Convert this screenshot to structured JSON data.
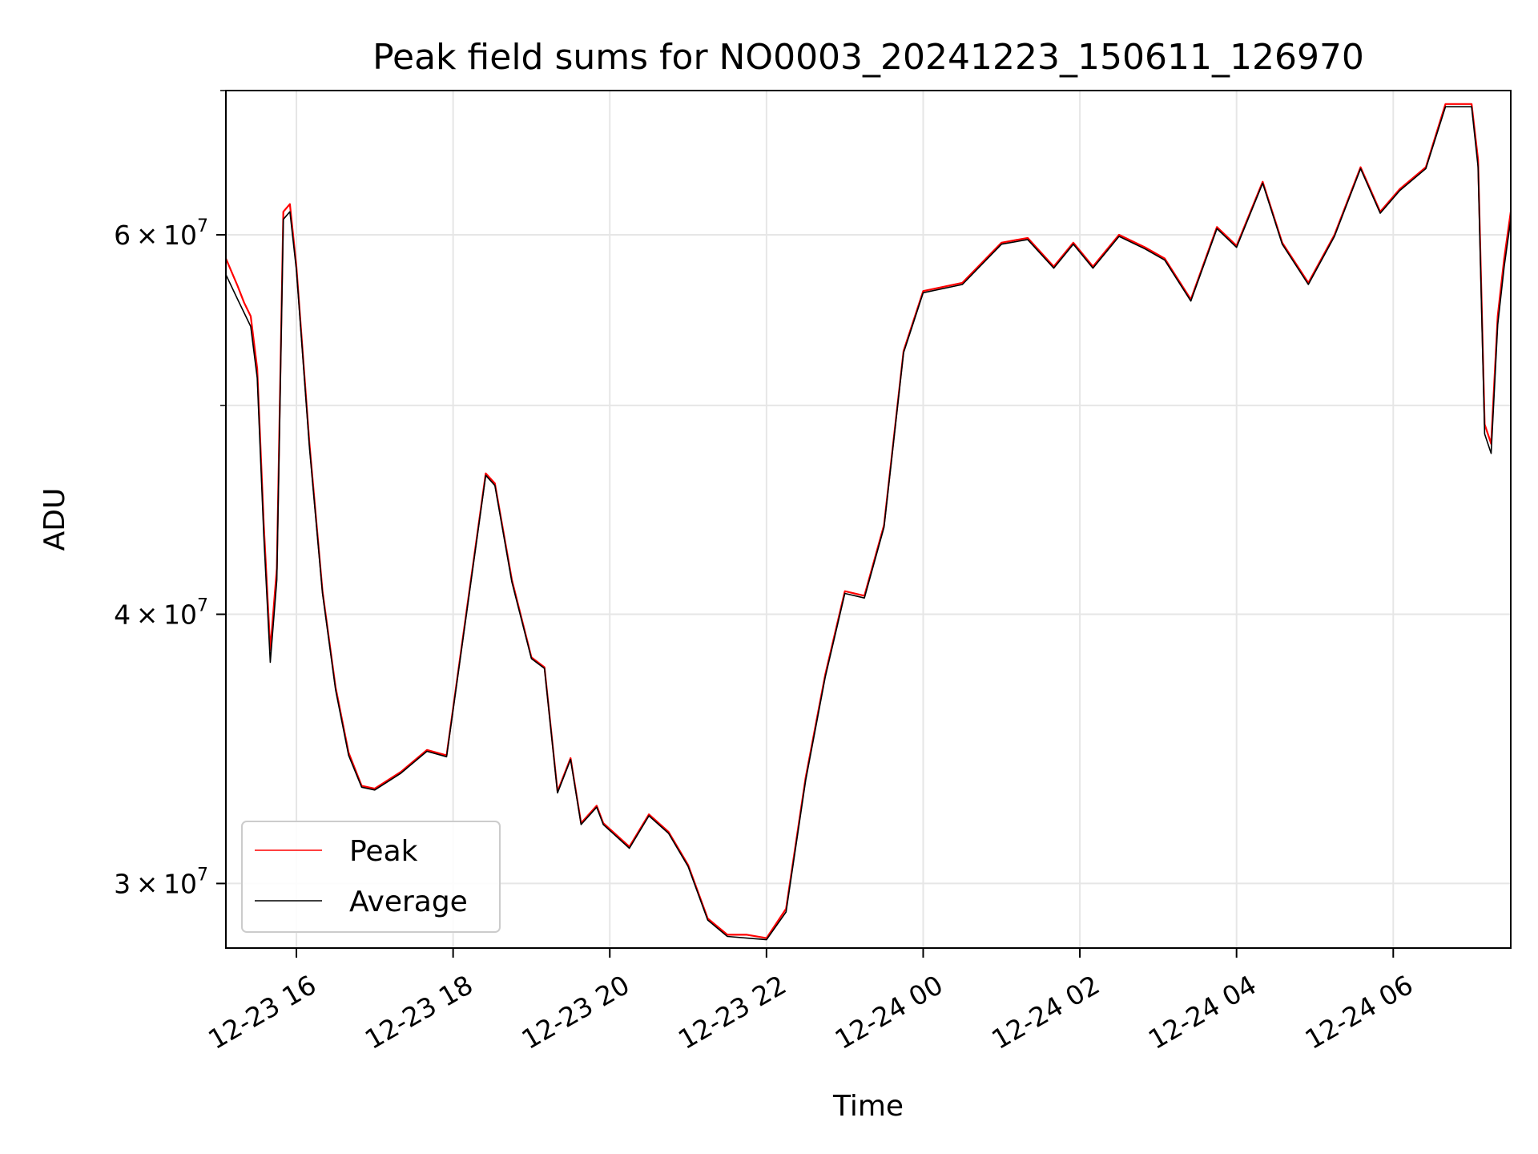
{
  "chart_data": {
    "type": "line",
    "title": "Peak field sums for NO0003_20241223_150611_126970",
    "xlabel": "Time",
    "ylabel": "ADU",
    "y_scale": "log",
    "grid": true,
    "legend_position": "lower-left",
    "x_range": [
      "2024-12-23 15:06",
      "2024-12-24 07:30"
    ],
    "ylim": [
      28000000,
      70000000
    ],
    "x_ticks": [
      {
        "value": "2024-12-23 16:00",
        "label": "12-23 16"
      },
      {
        "value": "2024-12-23 18:00",
        "label": "12-23 18"
      },
      {
        "value": "2024-12-23 20:00",
        "label": "12-23 20"
      },
      {
        "value": "2024-12-23 22:00",
        "label": "12-23 22"
      },
      {
        "value": "2024-12-24 00:00",
        "label": "12-24 00"
      },
      {
        "value": "2024-12-24 02:00",
        "label": "12-24 02"
      },
      {
        "value": "2024-12-24 04:00",
        "label": "12-24 04"
      },
      {
        "value": "2024-12-24 06:00",
        "label": "12-24 06"
      }
    ],
    "y_ticks_major": [
      {
        "value": 30000000,
        "mantissa": "3",
        "base": "10",
        "exp": "7"
      },
      {
        "value": 40000000,
        "mantissa": "4",
        "base": "10",
        "exp": "7"
      },
      {
        "value": 60000000,
        "mantissa": "6",
        "base": "10",
        "exp": "7"
      }
    ],
    "y_ticks_minor": [
      50000000
    ],
    "x": [
      "2024-12-23 15:06",
      "2024-12-23 15:15",
      "2024-12-23 15:20",
      "2024-12-23 15:25",
      "2024-12-23 15:30",
      "2024-12-23 15:35",
      "2024-12-23 15:40",
      "2024-12-23 15:45",
      "2024-12-23 15:50",
      "2024-12-23 15:55",
      "2024-12-23 16:00",
      "2024-12-23 16:10",
      "2024-12-23 16:20",
      "2024-12-23 16:30",
      "2024-12-23 16:40",
      "2024-12-23 16:50",
      "2024-12-23 17:00",
      "2024-12-23 17:20",
      "2024-12-23 17:40",
      "2024-12-23 17:55",
      "2024-12-23 18:10",
      "2024-12-23 18:25",
      "2024-12-23 18:32",
      "2024-12-23 18:45",
      "2024-12-23 19:00",
      "2024-12-23 19:10",
      "2024-12-23 19:20",
      "2024-12-23 19:30",
      "2024-12-23 19:38",
      "2024-12-23 19:50",
      "2024-12-23 19:55",
      "2024-12-23 20:15",
      "2024-12-23 20:30",
      "2024-12-23 20:45",
      "2024-12-23 21:00",
      "2024-12-23 21:15",
      "2024-12-23 21:30",
      "2024-12-23 21:45",
      "2024-12-23 22:00",
      "2024-12-23 22:15",
      "2024-12-23 22:30",
      "2024-12-23 22:45",
      "2024-12-23 23:00",
      "2024-12-23 23:15",
      "2024-12-23 23:30",
      "2024-12-23 23:45",
      "2024-12-24 00:00",
      "2024-12-24 00:30",
      "2024-12-24 01:00",
      "2024-12-24 01:20",
      "2024-12-24 01:40",
      "2024-12-24 01:55",
      "2024-12-24 02:10",
      "2024-12-24 02:30",
      "2024-12-24 02:50",
      "2024-12-24 03:05",
      "2024-12-24 03:25",
      "2024-12-24 03:45",
      "2024-12-24 04:00",
      "2024-12-24 04:20",
      "2024-12-24 04:35",
      "2024-12-24 04:55",
      "2024-12-24 05:15",
      "2024-12-24 05:35",
      "2024-12-24 05:50",
      "2024-12-24 06:05",
      "2024-12-24 06:25",
      "2024-12-24 06:40",
      "2024-12-24 07:00",
      "2024-12-24 07:05",
      "2024-12-24 07:10",
      "2024-12-24 07:15",
      "2024-12-24 07:20",
      "2024-12-24 07:25",
      "2024-12-24 07:30"
    ],
    "series": [
      {
        "name": "Peak",
        "color": "#ff0000",
        "values": [
          58500000,
          56800000,
          55800000,
          55000000,
          52000000,
          44000000,
          38500000,
          42000000,
          61500000,
          62000000,
          58000000,
          48000000,
          41000000,
          37000000,
          34500000,
          33300000,
          33200000,
          33800000,
          34600000,
          34400000,
          40000000,
          46500000,
          46000000,
          41500000,
          38200000,
          37800000,
          33100000,
          34300000,
          32000000,
          32600000,
          32000000,
          31200000,
          32300000,
          31700000,
          30600000,
          28900000,
          28400000,
          28400000,
          28300000,
          29200000,
          33600000,
          37500000,
          41000000,
          40800000,
          44000000,
          53000000,
          56500000,
          57000000,
          59500000,
          59800000,
          58000000,
          59500000,
          58000000,
          60000000,
          59200000,
          58500000,
          56000000,
          60500000,
          59300000,
          63500000,
          59500000,
          57000000,
          60000000,
          64500000,
          61500000,
          63000000,
          64500000,
          69000000,
          69000000,
          65000000,
          49000000,
          48000000,
          55000000,
          58500000,
          61500000
        ]
      },
      {
        "name": "Average",
        "color": "#000000",
        "values": [
          57500000,
          56000000,
          55200000,
          54400000,
          51500000,
          43500000,
          38000000,
          41500000,
          61000000,
          61500000,
          57800000,
          47800000,
          40900000,
          36900000,
          34400000,
          33250000,
          33150000,
          33750000,
          34550000,
          34350000,
          39900000,
          46400000,
          45900000,
          41400000,
          38150000,
          37750000,
          33050000,
          34250000,
          31950000,
          32550000,
          31950000,
          31150000,
          32250000,
          31650000,
          30550000,
          28850000,
          28350000,
          28300000,
          28250000,
          29100000,
          33500000,
          37400000,
          40900000,
          40700000,
          43900000,
          52900000,
          56400000,
          56900000,
          59400000,
          59700000,
          57900000,
          59400000,
          57900000,
          59900000,
          59100000,
          58400000,
          55900000,
          60400000,
          59200000,
          63400000,
          59400000,
          56900000,
          59900000,
          64400000,
          61400000,
          62900000,
          64400000,
          68800000,
          68800000,
          64500000,
          48500000,
          47500000,
          54500000,
          58000000,
          61000000
        ]
      }
    ]
  }
}
